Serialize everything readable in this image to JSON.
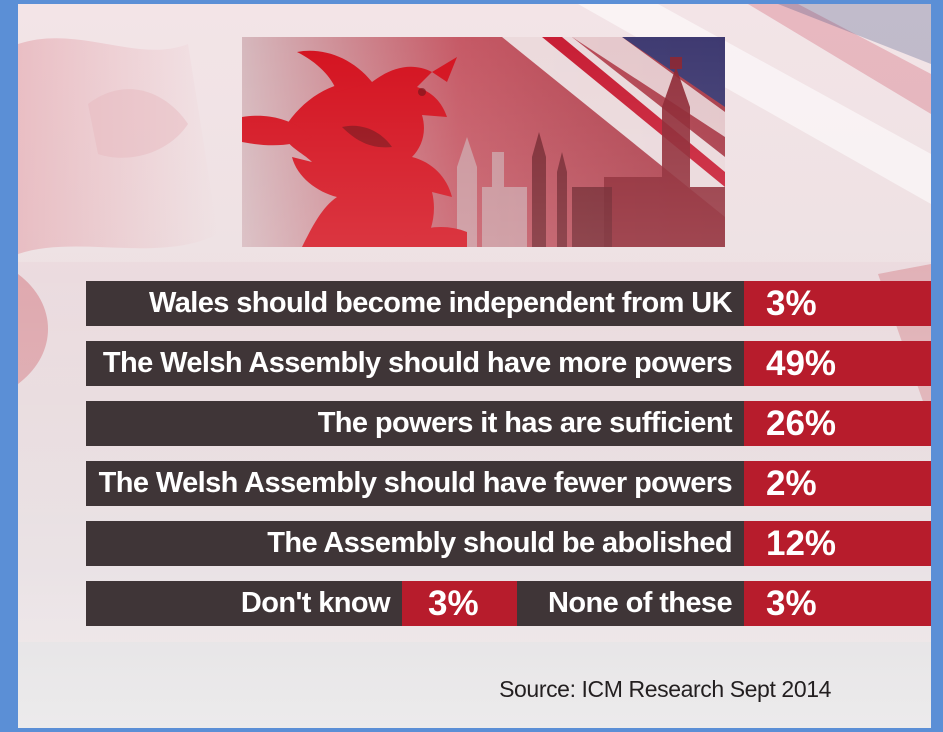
{
  "chart_data": {
    "type": "table",
    "title": "",
    "rows": [
      {
        "label": "Wales should become independent from UK",
        "value": 3,
        "value_label": "3%"
      },
      {
        "label": "The Welsh Assembly should have more powers",
        "value": 49,
        "value_label": "49%"
      },
      {
        "label": "The powers it has are sufficient",
        "value": 26,
        "value_label": "26%"
      },
      {
        "label": "The Welsh Assembly should have fewer powers",
        "value": 2,
        "value_label": "2%"
      },
      {
        "label": "The Assembly should be abolished",
        "value": 12,
        "value_label": "12%"
      }
    ],
    "split_row": [
      {
        "label": "Don't know",
        "value": 3,
        "value_label": "3%"
      },
      {
        "label": "None of these",
        "value": 3,
        "value_label": "3%"
      }
    ],
    "source": "Source: ICM Research Sept 2014",
    "colors": {
      "label_bar": "#3f3537",
      "value_bar": "#b71c2c",
      "text": "#ffffff"
    }
  },
  "header_image": {
    "icon": "welsh-dragon-union-flag-big-ben-icon"
  }
}
